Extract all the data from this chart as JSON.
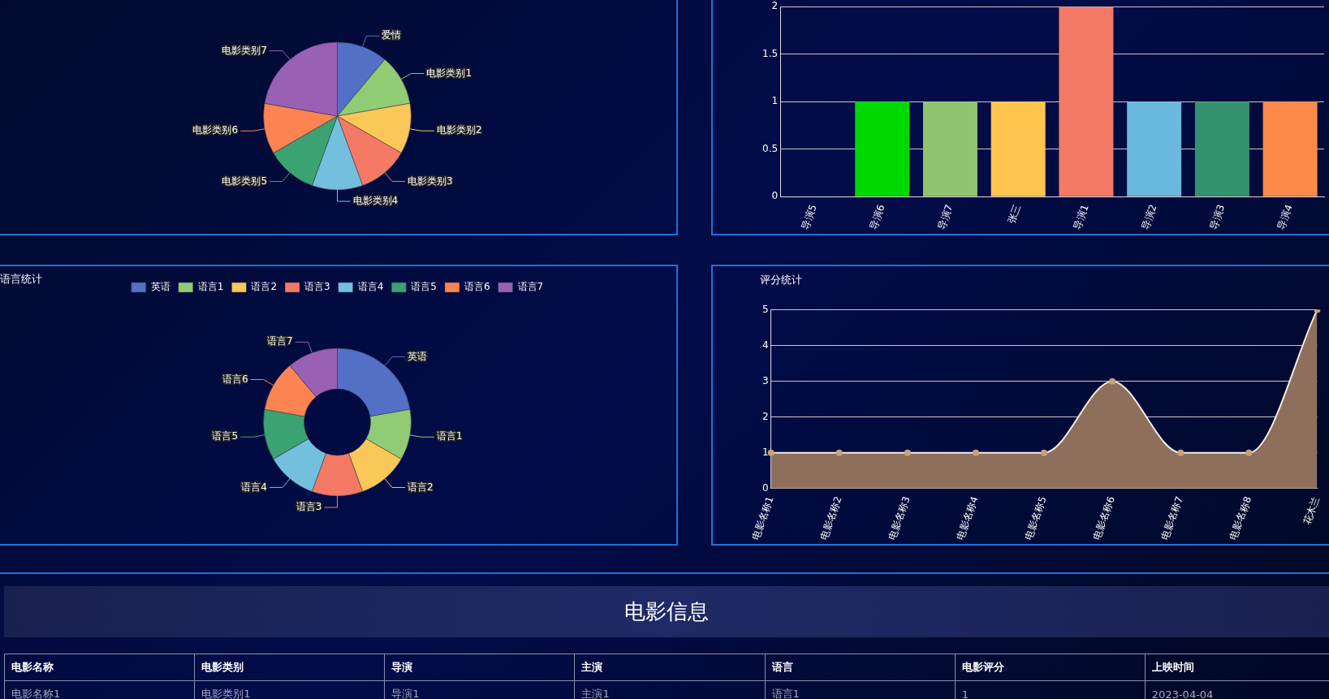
{
  "chart_data": [
    {
      "type": "pie",
      "categories": [
        "爱情",
        "电影类别1",
        "电影类别2",
        "电影类别3",
        "电影类别4",
        "电影类别5",
        "电影类别6",
        "电影类别7"
      ],
      "values": [
        11.11,
        11.11,
        11.11,
        11.11,
        11.11,
        11.11,
        11.11,
        22.23
      ],
      "colors": [
        "#5470c6",
        "#91cc75",
        "#fac858",
        "#f47a66",
        "#73c0de",
        "#3ba272",
        "#fc8452",
        "#9a60b4"
      ]
    },
    {
      "type": "bar",
      "categories": [
        "导演5",
        "导演6",
        "导演7",
        "张三",
        "导演1",
        "导演2",
        "导演3",
        "导演4"
      ],
      "values": [
        0,
        1,
        1,
        1,
        2,
        1,
        1,
        1
      ],
      "colors": [
        "#9a60b4",
        "#00d900",
        "#91c46e",
        "#fec54e",
        "#f47a66",
        "#6bb8de",
        "#339370",
        "#fd8a48"
      ],
      "ylim": [
        0,
        2
      ],
      "yticks": [
        0,
        0.5,
        1,
        1.5,
        2
      ],
      "grid": "y"
    },
    {
      "type": "donut",
      "title": "语言统计",
      "categories": [
        "英语",
        "语言1",
        "语言2",
        "语言3",
        "语言4",
        "语言5",
        "语言6",
        "语言7"
      ],
      "values": [
        22.23,
        11.11,
        11.11,
        11.11,
        11.11,
        11.11,
        11.11,
        11.11
      ],
      "colors": [
        "#5470c6",
        "#91cc75",
        "#fac858",
        "#f47a66",
        "#73c0de",
        "#3ba272",
        "#fc8452",
        "#9a60b4"
      ],
      "legend": "top"
    },
    {
      "type": "area",
      "title": "评分统计",
      "categories": [
        "电影名称1",
        "电影名称2",
        "电影名称3",
        "电影名称4",
        "电影名称5",
        "电影名称6",
        "电影名称7",
        "电影名称8",
        "花木兰"
      ],
      "values": [
        1,
        1,
        1,
        1,
        1,
        3,
        1,
        1,
        5
      ],
      "color": "#8e6f5c",
      "ylim": [
        0,
        5
      ],
      "yticks": [
        0,
        1,
        2,
        3,
        4,
        5
      ],
      "grid": "y",
      "marker": "circle"
    },
    {
      "type": "other",
      "title": "电影信息",
      "annotations": [
        "电影名称",
        "电影类别",
        "导演",
        "主演",
        "语言",
        "电影评分",
        "上映时间",
        "电影名称1",
        "电影类别1",
        "导演1",
        "主演1",
        "语言1",
        "1",
        "2023-04-04"
      ]
    }
  ]
}
